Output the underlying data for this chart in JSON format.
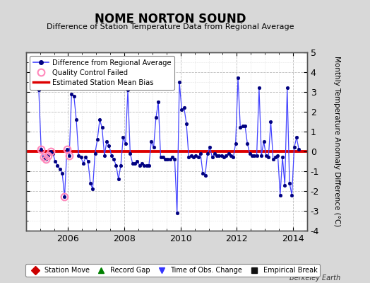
{
  "title": "NOME NORTON SOUND",
  "subtitle": "Difference of Station Temperature Data from Regional Average",
  "ylabel_right": "Monthly Temperature Anomaly Difference (°C)",
  "bias": 0.0,
  "ylim": [
    -4,
    5
  ],
  "yticks": [
    -4,
    -3,
    -2,
    -1,
    0,
    1,
    2,
    3,
    4,
    5
  ],
  "xlim": [
    2004.5,
    2014.5
  ],
  "xticks": [
    2006,
    2008,
    2010,
    2012,
    2014
  ],
  "background_color": "#d8d8d8",
  "plot_bg_color": "#ffffff",
  "line_color": "#4444ff",
  "bias_color": "#dd0000",
  "marker_color": "#000080",
  "qc_color": "#ff88bb",
  "watermark": "Berkeley Earth",
  "times": [
    2004.958,
    2005.042,
    2005.125,
    2005.208,
    2005.292,
    2005.375,
    2005.458,
    2005.542,
    2005.625,
    2005.708,
    2005.792,
    2005.875,
    2005.958,
    2006.042,
    2006.125,
    2006.208,
    2006.292,
    2006.375,
    2006.458,
    2006.542,
    2006.625,
    2006.708,
    2006.792,
    2006.875,
    2006.958,
    2007.042,
    2007.125,
    2007.208,
    2007.292,
    2007.375,
    2007.458,
    2007.542,
    2007.625,
    2007.708,
    2007.792,
    2007.875,
    2007.958,
    2008.042,
    2008.125,
    2008.208,
    2008.292,
    2008.375,
    2008.458,
    2008.542,
    2008.625,
    2008.708,
    2008.792,
    2008.875,
    2008.958,
    2009.042,
    2009.125,
    2009.208,
    2009.292,
    2009.375,
    2009.458,
    2009.542,
    2009.625,
    2009.708,
    2009.792,
    2009.875,
    2009.958,
    2010.042,
    2010.125,
    2010.208,
    2010.292,
    2010.375,
    2010.458,
    2010.542,
    2010.625,
    2010.708,
    2010.792,
    2010.875,
    2010.958,
    2011.042,
    2011.125,
    2011.208,
    2011.292,
    2011.375,
    2011.458,
    2011.542,
    2011.625,
    2011.708,
    2011.792,
    2011.875,
    2011.958,
    2012.042,
    2012.125,
    2012.208,
    2012.292,
    2012.375,
    2012.458,
    2012.542,
    2012.625,
    2012.708,
    2012.792,
    2012.875,
    2012.958,
    2013.042,
    2013.125,
    2013.208,
    2013.292,
    2013.375,
    2013.458,
    2013.542,
    2013.625,
    2013.708,
    2013.792,
    2013.875,
    2013.958,
    2014.042,
    2014.125,
    2014.208
  ],
  "values": [
    3.1,
    0.1,
    -0.3,
    -0.4,
    -0.2,
    0.0,
    -0.1,
    -0.5,
    -0.7,
    -0.9,
    -1.1,
    -2.3,
    0.1,
    -0.2,
    2.9,
    2.8,
    1.6,
    -0.2,
    -0.3,
    -0.6,
    -0.3,
    -0.5,
    -1.6,
    -1.9,
    -0.1,
    0.6,
    1.6,
    1.2,
    -0.2,
    0.5,
    0.3,
    -0.2,
    -0.4,
    -0.7,
    -1.4,
    -0.7,
    0.7,
    0.4,
    3.1,
    -0.1,
    -0.6,
    -0.6,
    -0.5,
    -0.7,
    -0.6,
    -0.7,
    -0.7,
    -0.7,
    0.5,
    0.2,
    1.7,
    2.5,
    -0.3,
    -0.3,
    -0.4,
    -0.4,
    -0.4,
    -0.3,
    -0.4,
    -3.1,
    3.5,
    2.1,
    2.2,
    1.4,
    -0.3,
    -0.2,
    -0.3,
    -0.2,
    -0.3,
    -0.1,
    -1.1,
    -1.2,
    -0.1,
    0.2,
    -0.3,
    -0.1,
    -0.2,
    -0.2,
    -0.2,
    -0.3,
    -0.2,
    -0.1,
    -0.2,
    -0.3,
    0.4,
    3.7,
    1.2,
    1.3,
    1.3,
    0.4,
    -0.1,
    -0.2,
    -0.2,
    -0.2,
    3.2,
    -0.2,
    0.5,
    -0.2,
    -0.3,
    1.5,
    -0.4,
    -0.3,
    -0.2,
    -2.2,
    -0.3,
    -1.7,
    3.2,
    -1.6,
    -2.2,
    0.2,
    0.7,
    0.1
  ],
  "qc_times": [
    2005.042,
    2005.125,
    2005.208,
    2005.292,
    2005.375,
    2005.875,
    2005.958,
    2006.042
  ],
  "qc_values": [
    0.1,
    -0.3,
    -0.4,
    -0.2,
    0.0,
    -2.3,
    0.1,
    -0.2
  ],
  "legend2_items": [
    {
      "label": "Station Move",
      "marker": "D",
      "color": "#cc0000"
    },
    {
      "label": "Record Gap",
      "marker": "^",
      "color": "#008000"
    },
    {
      "label": "Time of Obs. Change",
      "marker": "v",
      "color": "#3333ff"
    },
    {
      "label": "Empirical Break",
      "marker": "s",
      "color": "#111111"
    }
  ]
}
